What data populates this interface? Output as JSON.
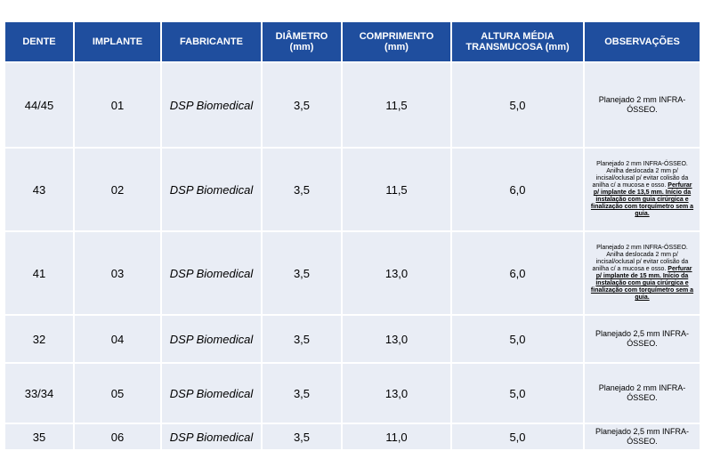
{
  "columns": {
    "dente": "DENTE",
    "implante": "IMPLANTE",
    "fabricante": "FABRICANTE",
    "diametro_line1": "DIÂMETRO",
    "diametro_line2": "(mm)",
    "comprimento_line1": "COMPRIMENTO",
    "comprimento_line2": "(mm)",
    "altura_line1": "ALTURA MÉDIA",
    "altura_line2": "TRANSMUCOSA (mm)",
    "observacoes": "OBSERVAÇÕES"
  },
  "rows": [
    {
      "dente": "44/45",
      "implante": "01",
      "fabricante": "DSP Biomedical",
      "diametro": "3,5",
      "comprimento": "11,5",
      "altura": "5,0",
      "obs_text": "Planejado 2 mm INFRA-ÓSSEO.",
      "obs_note": ""
    },
    {
      "dente": "43",
      "implante": "02",
      "fabricante": "DSP Biomedical",
      "diametro": "3,5",
      "comprimento": "11,5",
      "altura": "6,0",
      "obs_text": "Planejado 2 mm INFRA-ÓSSEO. Anilha deslocada 2 mm p/ incisal/oclusal p/ evitar colisão da anilha c/ a mucosa e osso. ",
      "obs_note": "Perfurar p/ implante de 13,5 mm. Início da instalação com guia cirúrgica e finalização com torquímetro sem a guia."
    },
    {
      "dente": "41",
      "implante": "03",
      "fabricante": "DSP Biomedical",
      "diametro": "3,5",
      "comprimento": "13,0",
      "altura": "6,0",
      "obs_text": "Planejado 2 mm INFRA-ÓSSEO. Anilha deslocada 2 mm p/ incisal/oclusal p/ evitar colisão da anilha c/ a mucosa e osso. ",
      "obs_note": "Perfurar p/ implante de 15 mm. Início da instalação com guia cirúrgica e finalização com torquímetro sem a guia."
    },
    {
      "dente": "32",
      "implante": "04",
      "fabricante": "DSP Biomedical",
      "diametro": "3,5",
      "comprimento": "13,0",
      "altura": "5,0",
      "obs_text": "Planejado 2,5 mm INFRA-ÓSSEO.",
      "obs_note": ""
    },
    {
      "dente": "33/34",
      "implante": "05",
      "fabricante": "DSP Biomedical",
      "diametro": "3,5",
      "comprimento": "13,0",
      "altura": "5,0",
      "obs_text": "Planejado 2 mm INFRA-ÓSSEO.",
      "obs_note": ""
    },
    {
      "dente": "35",
      "implante": "06",
      "fabricante": "DSP Biomedical",
      "diametro": "3,5",
      "comprimento": "11,0",
      "altura": "5,0",
      "obs_text": "Planejado 2,5 mm INFRA-ÓSSEO.",
      "obs_note": ""
    }
  ]
}
